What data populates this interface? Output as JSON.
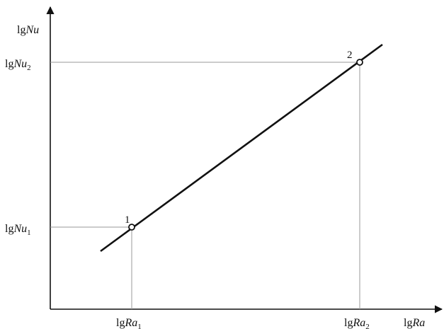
{
  "axes": {
    "x_label": {
      "base": "lg",
      "var": "Ra"
    },
    "y_label": {
      "base": "lg",
      "var": "Nu"
    }
  },
  "ticks": {
    "x": [
      {
        "base": "lg",
        "var": "Ra",
        "sub": "1"
      },
      {
        "base": "lg",
        "var": "Ra",
        "sub": "2"
      }
    ],
    "y": [
      {
        "base": "lg",
        "var": "Nu",
        "sub": "1"
      },
      {
        "base": "lg",
        "var": "Nu",
        "sub": "2"
      }
    ]
  },
  "points": [
    {
      "label": "1"
    },
    {
      "label": "2"
    }
  ]
}
